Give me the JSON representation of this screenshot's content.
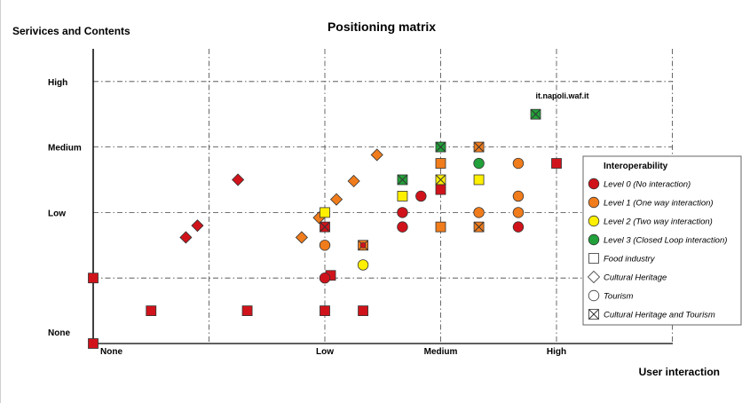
{
  "chart_data": {
    "type": "scatter",
    "title": "Positioning matrix",
    "ylabel": "Serivices and Contents",
    "xlabel": "User interaction",
    "x_ticks": [
      "None",
      "Low",
      "Medium",
      "High"
    ],
    "y_ticks": [
      "None",
      "Low",
      "Medium",
      "High"
    ],
    "xlim": [
      0,
      5
    ],
    "ylim": [
      0,
      4
    ],
    "grid": true,
    "legend": {
      "title": "Interoperability",
      "placement": "right",
      "entries": [
        {
          "label": "Level 0 (No interaction)",
          "kind": "color",
          "color": "#d0131b"
        },
        {
          "label": "Level 1 (One way interaction)",
          "kind": "color",
          "color": "#f07c1c"
        },
        {
          "label": "Level 2 (Two way interaction)",
          "kind": "color",
          "color": "#ffef00"
        },
        {
          "label": "Level 3 (Closed Loop interaction)",
          "kind": "color",
          "color": "#22a03a"
        },
        {
          "label": "Food industry",
          "kind": "shape",
          "shape": "square"
        },
        {
          "label": "Cultural Heritage",
          "kind": "shape",
          "shape": "diamond"
        },
        {
          "label": "Tourism",
          "kind": "shape",
          "shape": "circle"
        },
        {
          "label": "Cultural Heritage and Tourism",
          "kind": "shape",
          "shape": "xsquare"
        }
      ]
    },
    "annotations": [
      {
        "text": "it.napoli.waf.it",
        "x": 3.82,
        "y": 3.74
      }
    ],
    "points": [
      {
        "x": 0.0,
        "y": 0.0,
        "shape": "square",
        "level": 0
      },
      {
        "x": 0.0,
        "y": 1.0,
        "shape": "square",
        "level": 0
      },
      {
        "x": 0.5,
        "y": 0.5,
        "shape": "square",
        "level": 0
      },
      {
        "x": 1.33,
        "y": 0.5,
        "shape": "square",
        "level": 0
      },
      {
        "x": 2.0,
        "y": 0.5,
        "shape": "square",
        "level": 0
      },
      {
        "x": 2.33,
        "y": 0.5,
        "shape": "square",
        "level": 0
      },
      {
        "x": 2.05,
        "y": 1.04,
        "shape": "square",
        "level": 0
      },
      {
        "x": 2.0,
        "y": 1.0,
        "shape": "circle",
        "level": 0
      },
      {
        "x": 0.8,
        "y": 1.62,
        "shape": "diamond",
        "level": 0
      },
      {
        "x": 0.9,
        "y": 1.8,
        "shape": "diamond",
        "level": 0
      },
      {
        "x": 1.25,
        "y": 2.5,
        "shape": "diamond",
        "level": 0
      },
      {
        "x": 1.8,
        "y": 1.62,
        "shape": "diamond",
        "level": 1
      },
      {
        "x": 1.95,
        "y": 1.92,
        "shape": "diamond",
        "level": 1
      },
      {
        "x": 2.1,
        "y": 2.2,
        "shape": "diamond",
        "level": 1
      },
      {
        "x": 2.25,
        "y": 2.48,
        "shape": "diamond",
        "level": 1
      },
      {
        "x": 2.45,
        "y": 2.88,
        "shape": "diamond",
        "level": 1
      },
      {
        "x": 2.0,
        "y": 2.0,
        "shape": "square",
        "level": 2
      },
      {
        "x": 2.0,
        "y": 1.78,
        "shape": "xsquare",
        "level": 0
      },
      {
        "x": 2.0,
        "y": 1.5,
        "shape": "circle",
        "level": 1
      },
      {
        "x": 2.33,
        "y": 1.5,
        "shape": "xsquare",
        "level": 1
      },
      {
        "x": 2.33,
        "y": 1.5,
        "shape": "dot",
        "level": 0
      },
      {
        "x": 2.33,
        "y": 1.2,
        "shape": "circle",
        "level": 2
      },
      {
        "x": 2.67,
        "y": 2.5,
        "shape": "xsquare",
        "level": 3
      },
      {
        "x": 2.67,
        "y": 2.25,
        "shape": "square",
        "level": 2
      },
      {
        "x": 2.67,
        "y": 2.0,
        "shape": "circle",
        "level": 0
      },
      {
        "x": 2.67,
        "y": 1.78,
        "shape": "circle",
        "level": 0
      },
      {
        "x": 2.83,
        "y": 2.25,
        "shape": "circle",
        "level": 0
      },
      {
        "x": 3.0,
        "y": 3.0,
        "shape": "xsquare",
        "level": 3
      },
      {
        "x": 3.0,
        "y": 2.75,
        "shape": "square",
        "level": 1
      },
      {
        "x": 3.0,
        "y": 2.5,
        "shape": "xsquare",
        "level": 2
      },
      {
        "x": 3.0,
        "y": 2.35,
        "shape": "square",
        "level": 0
      },
      {
        "x": 3.0,
        "y": 1.78,
        "shape": "square",
        "level": 1
      },
      {
        "x": 3.33,
        "y": 3.0,
        "shape": "xsquare",
        "level": 1
      },
      {
        "x": 3.33,
        "y": 2.75,
        "shape": "circle",
        "level": 3
      },
      {
        "x": 3.33,
        "y": 2.5,
        "shape": "square",
        "level": 2
      },
      {
        "x": 3.33,
        "y": 2.0,
        "shape": "circle",
        "level": 1
      },
      {
        "x": 3.33,
        "y": 1.78,
        "shape": "xsquare",
        "level": 1
      },
      {
        "x": 3.67,
        "y": 2.75,
        "shape": "circle",
        "level": 1
      },
      {
        "x": 3.67,
        "y": 2.25,
        "shape": "circle",
        "level": 1
      },
      {
        "x": 3.67,
        "y": 2.0,
        "shape": "circle",
        "level": 1
      },
      {
        "x": 3.67,
        "y": 1.78,
        "shape": "circle",
        "level": 0
      },
      {
        "x": 3.82,
        "y": 3.5,
        "shape": "xsquare",
        "level": 3
      },
      {
        "x": 4.0,
        "y": 2.75,
        "shape": "square",
        "level": 0
      }
    ]
  }
}
